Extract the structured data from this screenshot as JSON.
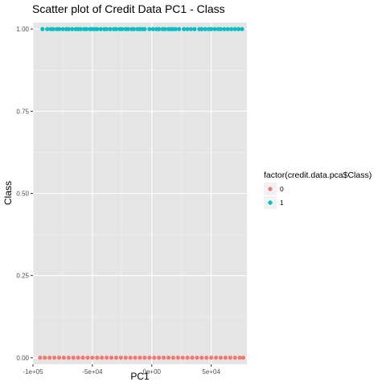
{
  "chart_data": {
    "type": "scatter",
    "title": "Scatter plot of Credit Data PC1 - Class",
    "xlabel": "PC1",
    "ylabel": "Class",
    "xlim": [
      -100000,
      80000
    ],
    "ylim": [
      -0.02,
      1.02
    ],
    "x_ticks": [
      {
        "value": -100000,
        "label": "-1e+05"
      },
      {
        "value": -50000,
        "label": "-5e+04"
      },
      {
        "value": 0,
        "label": "0e+00"
      },
      {
        "value": 50000,
        "label": "5e+04"
      }
    ],
    "y_ticks": [
      {
        "value": 0.0,
        "label": "0.00"
      },
      {
        "value": 0.25,
        "label": "0.25"
      },
      {
        "value": 0.5,
        "label": "0.50"
      },
      {
        "value": 0.75,
        "label": "0.75"
      },
      {
        "value": 1.0,
        "label": "1.00"
      }
    ],
    "grid": true,
    "background": "#e5e5e5",
    "legend": {
      "title": "factor(credit.data.pca$Class)",
      "placement": "right",
      "entries": [
        {
          "label": "0",
          "color": "#f8766d"
        },
        {
          "label": "1",
          "color": "#00bfc4"
        }
      ]
    },
    "series": [
      {
        "name": "0",
        "color": "#f8766d",
        "points": [
          [
            -94000,
            0
          ],
          [
            -90000,
            0
          ],
          [
            -86000,
            0
          ],
          [
            -82000,
            0
          ],
          [
            -78000,
            0
          ],
          [
            -74000,
            0
          ],
          [
            -70000,
            0
          ],
          [
            -66000,
            0
          ],
          [
            -62000,
            0
          ],
          [
            -58000,
            0
          ],
          [
            -54000,
            0
          ],
          [
            -50000,
            0
          ],
          [
            -46000,
            0
          ],
          [
            -42000,
            0
          ],
          [
            -38000,
            0
          ],
          [
            -34000,
            0
          ],
          [
            -30000,
            0
          ],
          [
            -26000,
            0
          ],
          [
            -22000,
            0
          ],
          [
            -18000,
            0
          ],
          [
            -14000,
            0
          ],
          [
            -10000,
            0
          ],
          [
            -6000,
            0
          ],
          [
            -2000,
            0
          ],
          [
            2000,
            0
          ],
          [
            6000,
            0
          ],
          [
            10000,
            0
          ],
          [
            14000,
            0
          ],
          [
            18000,
            0
          ],
          [
            22000,
            0
          ],
          [
            26000,
            0
          ],
          [
            30000,
            0
          ],
          [
            34000,
            0
          ],
          [
            38000,
            0
          ],
          [
            42000,
            0
          ],
          [
            46000,
            0
          ],
          [
            50000,
            0
          ],
          [
            54000,
            0
          ],
          [
            58000,
            0
          ],
          [
            62000,
            0
          ],
          [
            66000,
            0
          ],
          [
            70000,
            0
          ],
          [
            74000,
            0
          ],
          [
            77000,
            0
          ]
        ]
      },
      {
        "name": "1",
        "color": "#00bfc4",
        "points": [
          [
            -92000,
            1
          ],
          [
            -88000,
            1
          ],
          [
            -85000,
            1
          ],
          [
            -83000,
            1
          ],
          [
            -80000,
            1
          ],
          [
            -78000,
            1
          ],
          [
            -75000,
            1
          ],
          [
            -72000,
            1
          ],
          [
            -70000,
            1
          ],
          [
            -67000,
            1
          ],
          [
            -64000,
            1
          ],
          [
            -62000,
            1
          ],
          [
            -60000,
            1
          ],
          [
            -57000,
            1
          ],
          [
            -55000,
            1
          ],
          [
            -52000,
            1
          ],
          [
            -50000,
            1
          ],
          [
            -48000,
            1
          ],
          [
            -46000,
            1
          ],
          [
            -43000,
            1
          ],
          [
            -40000,
            1
          ],
          [
            -38000,
            1
          ],
          [
            -35000,
            1
          ],
          [
            -32000,
            1
          ],
          [
            -30000,
            1
          ],
          [
            -27000,
            1
          ],
          [
            -25000,
            1
          ],
          [
            -22000,
            1
          ],
          [
            -20000,
            1
          ],
          [
            -17000,
            1
          ],
          [
            -15000,
            1
          ],
          [
            -12000,
            1
          ],
          [
            -10000,
            1
          ],
          [
            -8000,
            1
          ],
          [
            -6000,
            1
          ],
          [
            -2000,
            1
          ],
          [
            1000,
            1
          ],
          [
            4000,
            1
          ],
          [
            6000,
            1
          ],
          [
            9000,
            1
          ],
          [
            11000,
            1
          ],
          [
            14000,
            1
          ],
          [
            16000,
            1
          ],
          [
            18000,
            1
          ],
          [
            20000,
            1
          ],
          [
            23000,
            1
          ],
          [
            27000,
            1
          ],
          [
            30000,
            1
          ],
          [
            33000,
            1
          ],
          [
            36000,
            1
          ],
          [
            40000,
            1
          ],
          [
            42000,
            1
          ],
          [
            45000,
            1
          ],
          [
            48000,
            1
          ],
          [
            50000,
            1
          ],
          [
            53000,
            1
          ],
          [
            56000,
            1
          ],
          [
            58000,
            1
          ],
          [
            61000,
            1
          ],
          [
            64000,
            1
          ],
          [
            67000,
            1
          ],
          [
            70000,
            1
          ],
          [
            73000,
            1
          ],
          [
            76000,
            1
          ]
        ]
      }
    ]
  }
}
